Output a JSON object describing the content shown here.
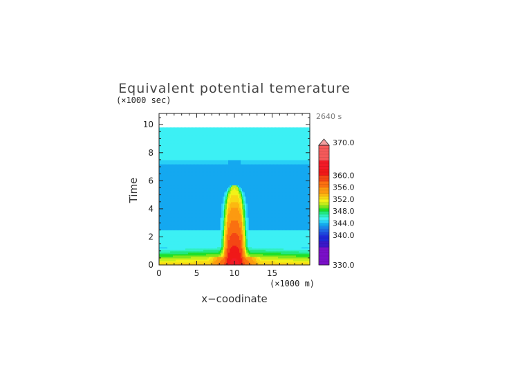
{
  "chart_data": {
    "type": "heatmap",
    "title": "Equivalent potential temerature",
    "xlabel": "x−coodinate",
    "ylabel": "Time",
    "x_unit": "(×1000 m)",
    "y_unit": "(×1000 sec)",
    "timestamp": "2640 s",
    "xlim": [
      0,
      20
    ],
    "ylim": [
      0,
      10.8
    ],
    "x_ticks": [
      0,
      5,
      10,
      15
    ],
    "y_ticks": [
      0,
      2,
      4,
      6,
      8,
      10
    ],
    "data_extent": {
      "x": [
        0,
        20
      ],
      "y": [
        0,
        9.8
      ]
    },
    "field_description_values": {
      "background_upper": 345,
      "background_mid": 343.5,
      "background_lower": 345,
      "column_center_x": 10,
      "column_top_time": 5.7,
      "column_core_max": 362
    },
    "colorbar": {
      "min": 330,
      "max": 370,
      "step": 1,
      "tick_labels": [
        "370.0",
        "360.0",
        "356.0",
        "352.0",
        "348.0",
        "344.0",
        "340.0",
        "330.0"
      ],
      "tick_values": [
        370,
        360,
        356,
        352,
        348,
        344,
        340,
        330
      ],
      "colors": [
        {
          "from": 330,
          "to": 336,
          "color": "#7a10c8"
        },
        {
          "from": 336,
          "to": 338,
          "color": "#3a18c8"
        },
        {
          "from": 338,
          "to": 340,
          "color": "#1e28d8"
        },
        {
          "from": 340,
          "to": 341,
          "color": "#1e46e0"
        },
        {
          "from": 341,
          "to": 342,
          "color": "#2064e6"
        },
        {
          "from": 342,
          "to": 343,
          "color": "#1c84ea"
        },
        {
          "from": 343,
          "to": 344,
          "color": "#14a8f0"
        },
        {
          "from": 344,
          "to": 345,
          "color": "#28d0f6"
        },
        {
          "from": 345,
          "to": 346,
          "color": "#3cf0f4"
        },
        {
          "from": 346,
          "to": 347,
          "color": "#30f0c0"
        },
        {
          "from": 347,
          "to": 348,
          "color": "#22e880"
        },
        {
          "from": 348,
          "to": 349,
          "color": "#1ee028"
        },
        {
          "from": 349,
          "to": 350,
          "color": "#7ee61c"
        },
        {
          "from": 350,
          "to": 351,
          "color": "#c4ee1a"
        },
        {
          "from": 351,
          "to": 352,
          "color": "#f2f218"
        },
        {
          "from": 352,
          "to": 353,
          "color": "#f8d814"
        },
        {
          "from": 353,
          "to": 354,
          "color": "#fcb810"
        },
        {
          "from": 354,
          "to": 356,
          "color": "#fc9a10"
        },
        {
          "from": 356,
          "to": 358,
          "color": "#fa7010"
        },
        {
          "from": 358,
          "to": 360,
          "color": "#f44614"
        },
        {
          "from": 360,
          "to": 362,
          "color": "#f01818"
        },
        {
          "from": 362,
          "to": 365,
          "color": "#f21a26"
        },
        {
          "from": 365,
          "to": 370,
          "color": "#f45a5a"
        },
        {
          "from": 370,
          "to": 375,
          "color": "#f4a0a0"
        }
      ]
    }
  }
}
